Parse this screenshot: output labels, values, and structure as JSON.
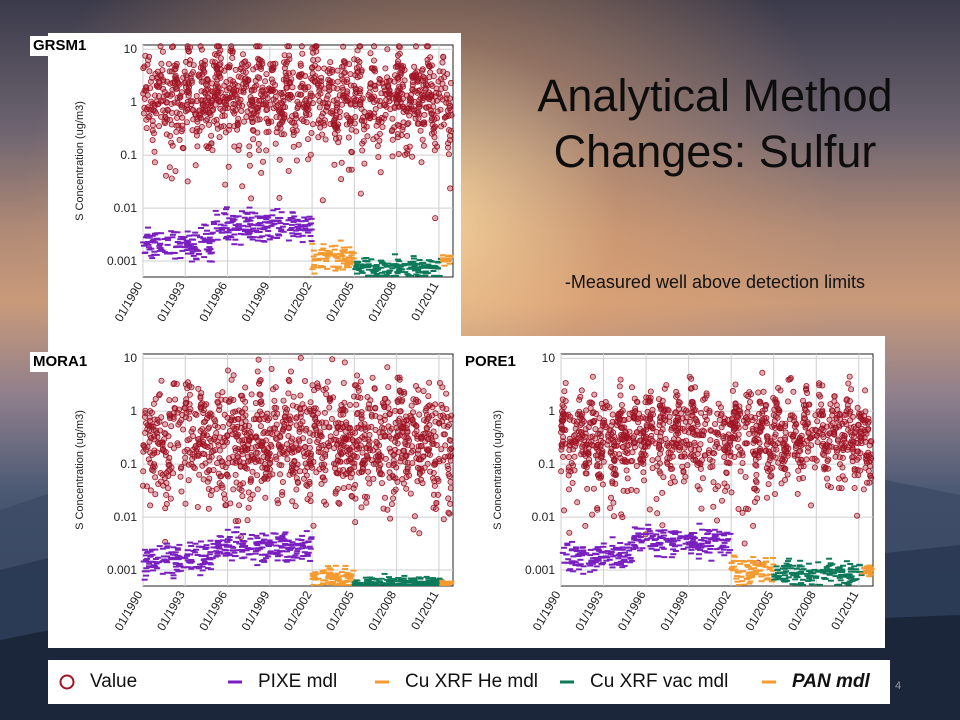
{
  "slide": {
    "title": "Analytical Method Changes: Sulfur",
    "subtitle": "-Measured well above detection limits",
    "page_number": "4"
  },
  "colors": {
    "value": "#a01525",
    "pixe": "#7a1fc0",
    "cu_he": "#f59a2e",
    "cu_vac": "#0d7a5a",
    "pan": "#f59a2e"
  },
  "legend": [
    {
      "label": "Value",
      "symbol": "circle",
      "color": "#a01525"
    },
    {
      "label": "PIXE mdl",
      "symbol": "dash",
      "color": "#7a1fc0"
    },
    {
      "label": "Cu XRF He mdl",
      "symbol": "dash",
      "color": "#f59a2e"
    },
    {
      "label": "Cu XRF vac mdl",
      "symbol": "dash",
      "color": "#0d7a5a"
    },
    {
      "label": "PAN mdl",
      "symbol": "dash",
      "color": "#f59a2e",
      "style": "bold-italic"
    }
  ],
  "chart_data": [
    {
      "site": "GRSM1",
      "type": "scatter",
      "ylabel": "S Concentration (ug/m3)",
      "yscale": "log",
      "ylim": [
        0.0005,
        12
      ],
      "yticks": [
        "10",
        "1",
        "0.1",
        "0.01",
        "0.001"
      ],
      "xticks": [
        "01/1990",
        "01/1993",
        "01/1996",
        "01/1999",
        "01/2002",
        "01/2005",
        "01/2008",
        "01/2011"
      ],
      "xlim": [
        1990.0,
        2012.0
      ],
      "grid": true,
      "series": [
        {
          "name": "Value",
          "marker": "circle",
          "segments": [
            {
              "start": 1990.0,
              "end": 2011.9,
              "median": 1.2,
              "spread": 0.4
            }
          ]
        },
        {
          "name": "PIXE mdl",
          "marker": "dash",
          "segments": [
            {
              "start": 1990.0,
              "end": 1995.0,
              "median": 0.0022,
              "spread": 0.15
            },
            {
              "start": 1995.0,
              "end": 2002.0,
              "median": 0.0045,
              "spread": 0.15
            }
          ]
        },
        {
          "name": "Cu XRF He mdl",
          "marker": "dash",
          "segments": [
            {
              "start": 2002.0,
              "end": 2005.0,
              "median": 0.0011,
              "spread": 0.13
            }
          ]
        },
        {
          "name": "Cu XRF vac mdl",
          "marker": "dash",
          "segments": [
            {
              "start": 2005.0,
              "end": 2011.2,
              "median": 0.00075,
              "spread": 0.1
            }
          ]
        },
        {
          "name": "PAN mdl",
          "marker": "dash",
          "segments": [
            {
              "start": 2011.2,
              "end": 2011.9,
              "median": 0.0011,
              "spread": 0.05
            }
          ]
        }
      ]
    },
    {
      "site": "MORA1",
      "type": "scatter",
      "ylabel": "S Concentration (ug/m3)",
      "yscale": "log",
      "ylim": [
        0.0005,
        12
      ],
      "yticks": [
        "10",
        "1",
        "0.1",
        "0.01",
        "0.001"
      ],
      "xticks": [
        "01/1990",
        "01/1993",
        "01/1996",
        "01/1999",
        "01/2002",
        "01/2005",
        "01/2008",
        "01/2011"
      ],
      "xlim": [
        1990.0,
        2012.0
      ],
      "grid": true,
      "series": [
        {
          "name": "Value",
          "marker": "circle",
          "segments": [
            {
              "start": 1990.0,
              "end": 2011.9,
              "median": 0.28,
              "spread": 0.5
            }
          ]
        },
        {
          "name": "PIXE mdl",
          "marker": "dash",
          "segments": [
            {
              "start": 1990.0,
              "end": 1995.0,
              "median": 0.0016,
              "spread": 0.15
            },
            {
              "start": 1995.0,
              "end": 2002.0,
              "median": 0.0028,
              "spread": 0.15
            }
          ]
        },
        {
          "name": "Cu XRF He mdl",
          "marker": "dash",
          "segments": [
            {
              "start": 2002.0,
              "end": 2005.0,
              "median": 0.0007,
              "spread": 0.1
            }
          ]
        },
        {
          "name": "Cu XRF vac mdl",
          "marker": "dash",
          "segments": [
            {
              "start": 2005.0,
              "end": 2011.2,
              "median": 0.00058,
              "spread": 0.06
            }
          ]
        },
        {
          "name": "PAN mdl",
          "marker": "dash",
          "segments": [
            {
              "start": 2011.2,
              "end": 2011.9,
              "median": 0.00055,
              "spread": 0.03
            }
          ]
        }
      ]
    },
    {
      "site": "PORE1",
      "type": "scatter",
      "ylabel": "S Concentration (ug/m3)",
      "yscale": "log",
      "ylim": [
        0.0005,
        12
      ],
      "yticks": [
        "10",
        "1",
        "0.1",
        "0.01",
        "0.001"
      ],
      "xticks": [
        "01/1990",
        "01/1993",
        "01/1996",
        "01/1999",
        "01/2002",
        "01/2005",
        "01/2008",
        "01/2011"
      ],
      "xlim": [
        1990.0,
        2012.0
      ],
      "grid": true,
      "series": [
        {
          "name": "Value",
          "marker": "circle",
          "segments": [
            {
              "start": 1990.0,
              "end": 2011.9,
              "median": 0.35,
              "spread": 0.35
            }
          ]
        },
        {
          "name": "PIXE mdl",
          "marker": "dash",
          "segments": [
            {
              "start": 1990.0,
              "end": 1995.0,
              "median": 0.0018,
              "spread": 0.15
            },
            {
              "start": 1995.0,
              "end": 2002.0,
              "median": 0.0035,
              "spread": 0.15
            }
          ]
        },
        {
          "name": "Cu XRF He mdl",
          "marker": "dash",
          "segments": [
            {
              "start": 2002.0,
              "end": 2005.0,
              "median": 0.001,
              "spread": 0.12
            }
          ]
        },
        {
          "name": "Cu XRF vac mdl",
          "marker": "dash",
          "segments": [
            {
              "start": 2005.0,
              "end": 2011.2,
              "median": 0.00085,
              "spread": 0.12
            }
          ]
        },
        {
          "name": "PAN mdl",
          "marker": "dash",
          "segments": [
            {
              "start": 2011.2,
              "end": 2011.9,
              "median": 0.001,
              "spread": 0.05
            }
          ]
        }
      ]
    }
  ]
}
